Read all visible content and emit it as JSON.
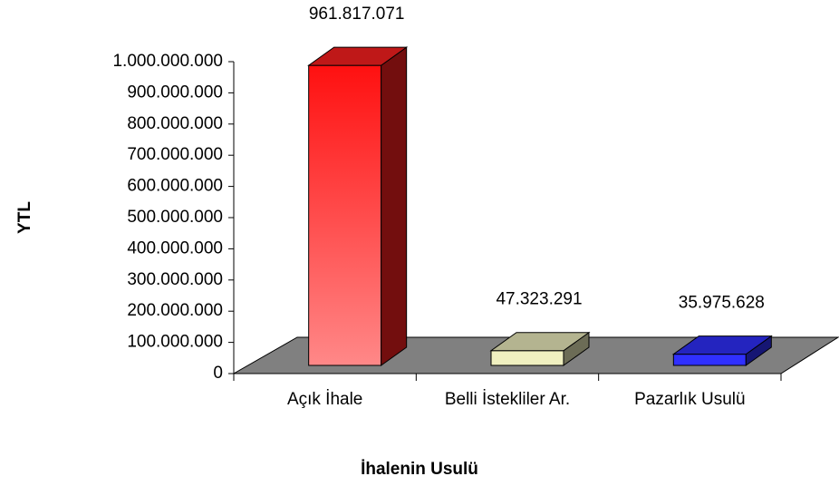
{
  "chart_data": {
    "type": "bar3d",
    "ylabel": "YTL",
    "xlabel": "İhalenin Usulü",
    "categories": [
      "Açık İhale",
      "Belli İstekliler Ar.",
      "Pazarlık Usulü"
    ],
    "values": [
      961817071,
      47323291,
      35975628
    ],
    "value_labels": [
      "961.817.071",
      "47.323.291",
      "35.975.628"
    ],
    "colors": [
      "#ff2020",
      "#f0f0c0",
      "#3030ff"
    ],
    "ylim": [
      0,
      1000000000
    ],
    "yticks": [
      0,
      {
        "value": 100000000,
        "label": "100.000.000"
      },
      {
        "value": 200000000,
        "label": "200.000.000"
      },
      {
        "value": 300000000,
        "label": "300.000.000"
      },
      {
        "value": 400000000,
        "label": "400.000.000"
      },
      {
        "value": 500000000,
        "label": "500.000.000"
      },
      {
        "value": 600000000,
        "label": "600.000.000"
      },
      {
        "value": 700000000,
        "label": "700.000.000"
      },
      {
        "value": 800000000,
        "label": "800.000.000"
      },
      {
        "value": 900000000,
        "label": "900.000.000"
      },
      {
        "value": 1000000000,
        "label": "1.000.000.000"
      }
    ]
  }
}
